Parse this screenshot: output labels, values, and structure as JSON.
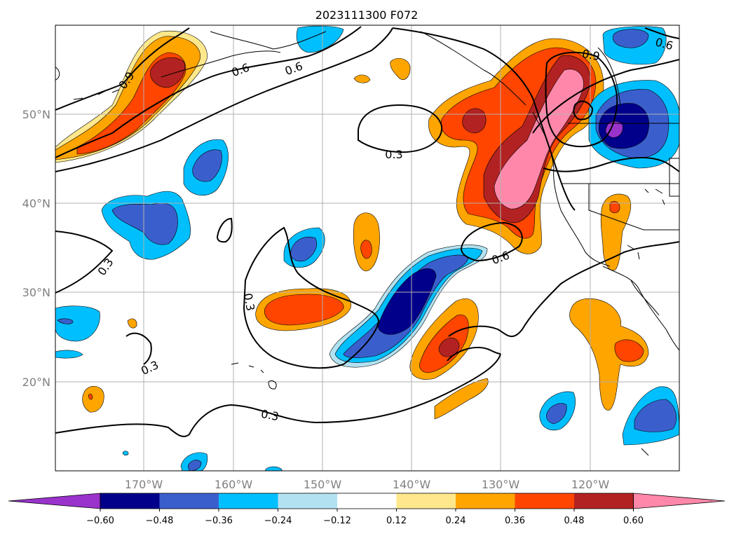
{
  "title": "2023111300 F072",
  "lat_labels": [
    "20°N",
    "30°N",
    "40°N",
    "50°N"
  ],
  "lon_labels": [
    "170°W",
    "160°W",
    "150°W",
    "140°W",
    "130°W",
    "120°W"
  ],
  "contour_labels": [
    "0.9",
    "0.6",
    "0.3",
    "0.3",
    "0.3",
    "0.3",
    "0.3",
    "0.6",
    "0.9",
    "0.6",
    "0.6"
  ],
  "colorbar": {
    "colors": [
      "#9933cc",
      "#00008b",
      "#3a5fcd",
      "#00bfff",
      "#b2e2f2",
      "#ffffff",
      "#ffe88c",
      "#ffa500",
      "#ff4500",
      "#b22222",
      "#ff88aa"
    ],
    "ticks": [
      "−0.60",
      "−0.48",
      "−0.36",
      "−0.24",
      "−0.12",
      "0.12",
      "0.24",
      "0.36",
      "0.48",
      "0.60"
    ]
  }
}
